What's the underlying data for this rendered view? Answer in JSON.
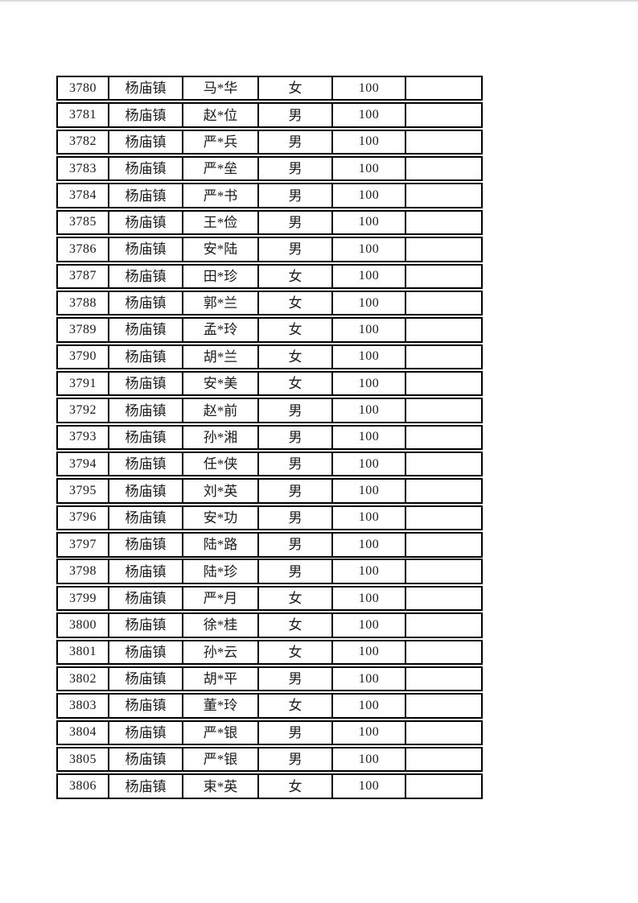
{
  "page": {
    "background_color": "#ffffff",
    "border_color": "#000000",
    "text_color": "#1a1a1a"
  },
  "table": {
    "town_repeated_value": "杨庙镇",
    "amount_repeated_value": "100",
    "rows": [
      {
        "no": "3780",
        "town": "杨庙镇",
        "name": "马*华",
        "gender": "女",
        "amount": "100",
        "note": ""
      },
      {
        "no": "3781",
        "town": "杨庙镇",
        "name": "赵*位",
        "gender": "男",
        "amount": "100",
        "note": ""
      },
      {
        "no": "3782",
        "town": "杨庙镇",
        "name": "严*兵",
        "gender": "男",
        "amount": "100",
        "note": ""
      },
      {
        "no": "3783",
        "town": "杨庙镇",
        "name": "严*垒",
        "gender": "男",
        "amount": "100",
        "note": ""
      },
      {
        "no": "3784",
        "town": "杨庙镇",
        "name": "严*书",
        "gender": "男",
        "amount": "100",
        "note": ""
      },
      {
        "no": "3785",
        "town": "杨庙镇",
        "name": "王*俭",
        "gender": "男",
        "amount": "100",
        "note": ""
      },
      {
        "no": "3786",
        "town": "杨庙镇",
        "name": "安*陆",
        "gender": "男",
        "amount": "100",
        "note": ""
      },
      {
        "no": "3787",
        "town": "杨庙镇",
        "name": "田*珍",
        "gender": "女",
        "amount": "100",
        "note": ""
      },
      {
        "no": "3788",
        "town": "杨庙镇",
        "name": "郭*兰",
        "gender": "女",
        "amount": "100",
        "note": ""
      },
      {
        "no": "3789",
        "town": "杨庙镇",
        "name": "孟*玲",
        "gender": "女",
        "amount": "100",
        "note": ""
      },
      {
        "no": "3790",
        "town": "杨庙镇",
        "name": "胡*兰",
        "gender": "女",
        "amount": "100",
        "note": ""
      },
      {
        "no": "3791",
        "town": "杨庙镇",
        "name": "安*美",
        "gender": "女",
        "amount": "100",
        "note": ""
      },
      {
        "no": "3792",
        "town": "杨庙镇",
        "name": "赵*前",
        "gender": "男",
        "amount": "100",
        "note": ""
      },
      {
        "no": "3793",
        "town": "杨庙镇",
        "name": "孙*湘",
        "gender": "男",
        "amount": "100",
        "note": ""
      },
      {
        "no": "3794",
        "town": "杨庙镇",
        "name": "任*侠",
        "gender": "男",
        "amount": "100",
        "note": ""
      },
      {
        "no": "3795",
        "town": "杨庙镇",
        "name": "刘*英",
        "gender": "男",
        "amount": "100",
        "note": ""
      },
      {
        "no": "3796",
        "town": "杨庙镇",
        "name": "安*功",
        "gender": "男",
        "amount": "100",
        "note": ""
      },
      {
        "no": "3797",
        "town": "杨庙镇",
        "name": "陆*路",
        "gender": "男",
        "amount": "100",
        "note": ""
      },
      {
        "no": "3798",
        "town": "杨庙镇",
        "name": "陆*珍",
        "gender": "男",
        "amount": "100",
        "note": ""
      },
      {
        "no": "3799",
        "town": "杨庙镇",
        "name": "严*月",
        "gender": "女",
        "amount": "100",
        "note": ""
      },
      {
        "no": "3800",
        "town": "杨庙镇",
        "name": "徐*桂",
        "gender": "女",
        "amount": "100",
        "note": ""
      },
      {
        "no": "3801",
        "town": "杨庙镇",
        "name": "孙*云",
        "gender": "女",
        "amount": "100",
        "note": ""
      },
      {
        "no": "3802",
        "town": "杨庙镇",
        "name": "胡*平",
        "gender": "男",
        "amount": "100",
        "note": ""
      },
      {
        "no": "3803",
        "town": "杨庙镇",
        "name": "董*玲",
        "gender": "女",
        "amount": "100",
        "note": ""
      },
      {
        "no": "3804",
        "town": "杨庙镇",
        "name": "严*银",
        "gender": "男",
        "amount": "100",
        "note": ""
      },
      {
        "no": "3805",
        "town": "杨庙镇",
        "name": "严*银",
        "gender": "男",
        "amount": "100",
        "note": ""
      },
      {
        "no": "3806",
        "town": "杨庙镇",
        "name": "束*英",
        "gender": "女",
        "amount": "100",
        "note": ""
      }
    ]
  }
}
